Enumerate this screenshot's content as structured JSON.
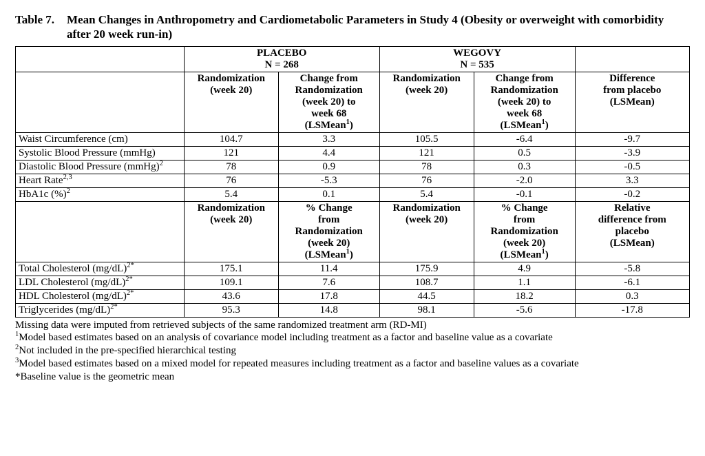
{
  "title": {
    "label": "Table 7.",
    "text": "Mean Changes in Anthropometry and Cardiometabolic Parameters in Study 4 (Obesity or overweight with comorbidity after 20 week run-in)"
  },
  "groups": {
    "placebo": {
      "name": "PLACEBO",
      "n": "N = 268"
    },
    "wegovy": {
      "name": "WEGOVY",
      "n": "N = 535"
    }
  },
  "head1": {
    "rand": "Randomization (week 20)",
    "chg_l1": "Change from",
    "chg_l2": "Randomization",
    "chg_l3": "(week 20) to",
    "chg_l4": "week 68",
    "chg_l5": "(LSMean",
    "chg_sup": "1",
    "chg_close": ")",
    "diff_l1": "Difference",
    "diff_l2": "from placebo",
    "diff_l3": "(LSMean)"
  },
  "rows1": {
    "r0": {
      "label": "Waist Circumference (cm)",
      "p_rand": "104.7",
      "p_chg": "3.3",
      "w_rand": "105.5",
      "w_chg": "-6.4",
      "diff": "-9.7"
    },
    "r1": {
      "label": "Systolic Blood Pressure (mmHg)",
      "p_rand": "121",
      "p_chg": "4.4",
      "w_rand": "121",
      "w_chg": "0.5",
      "diff": "-3.9"
    },
    "r2": {
      "label_pre": "Diastolic Blood Pressure (mmHg)",
      "label_sup": "2",
      "p_rand": "78",
      "p_chg": "0.9",
      "w_rand": "78",
      "w_chg": "0.3",
      "diff": "-0.5"
    },
    "r3": {
      "label_pre": "Heart Rate",
      "label_sup": "2,3",
      "p_rand": "76",
      "p_chg": "-5.3",
      "w_rand": "76",
      "w_chg": "-2.0",
      "diff": "3.3"
    },
    "r4": {
      "label_pre": "HbA1c (%)",
      "label_sup": "2",
      "p_rand": "5.4",
      "p_chg": "0.1",
      "w_rand": "5.4",
      "w_chg": "-0.1",
      "diff": "-0.2"
    }
  },
  "head2": {
    "rand": "Randomization (week 20)",
    "chg_l1": "% Change",
    "chg_l2": "from",
    "chg_l3": "Randomization",
    "chg_l4": "(week 20)",
    "chg_l5": "(LSMean",
    "chg_sup": "1",
    "chg_close": ")",
    "diff_l1": "Relative",
    "diff_l2": "difference from",
    "diff_l3": "placebo",
    "diff_l4": "(LSMean)"
  },
  "rows2": {
    "r0": {
      "label_pre": "Total Cholesterol (mg/dL)",
      "label_sup": "2*",
      "p_rand": "175.1",
      "p_chg": "11.4",
      "w_rand": "175.9",
      "w_chg": "4.9",
      "diff": "-5.8"
    },
    "r1": {
      "label_pre": "LDL Cholesterol (mg/dL)",
      "label_sup": "2*",
      "p_rand": "109.1",
      "p_chg": "7.6",
      "w_rand": "108.7",
      "w_chg": "1.1",
      "diff": "-6.1"
    },
    "r2": {
      "label_pre": "HDL Cholesterol (mg/dL)",
      "label_sup": "2*",
      "p_rand": "43.6",
      "p_chg": "17.8",
      "w_rand": "44.5",
      "w_chg": "18.2",
      "diff": "0.3"
    },
    "r3": {
      "label_pre": "Triglycerides (mg/dL)",
      "label_sup": "2*",
      "p_rand": "95.3",
      "p_chg": "14.8",
      "w_rand": "98.1",
      "w_chg": "-5.6",
      "diff": "-17.8"
    }
  },
  "footnotes": {
    "f0": "Missing data were imputed from retrieved subjects of the same randomized treatment arm (RD-MI)",
    "f1_sup": "1",
    "f1": "Model based estimates based on an analysis of covariance model including treatment as a factor and baseline value as a covariate",
    "f2_sup": "2",
    "f2": "Not included in the pre-specified hierarchical testing",
    "f3_sup": "3",
    "f3": "Model based estimates based on a mixed model for repeated measures including treatment as a factor and baseline values as a covariate",
    "f4": "*Baseline value is the geometric mean"
  }
}
